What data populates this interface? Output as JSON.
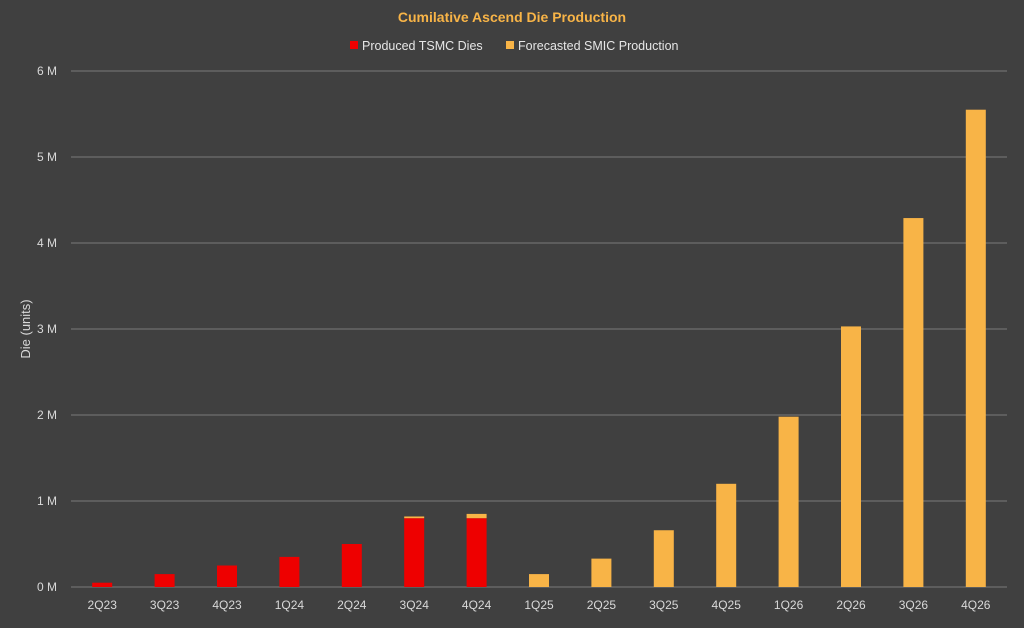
{
  "chart_data": {
    "type": "bar",
    "stacked": true,
    "title": "Cumilative Ascend Die Production",
    "xlabel": "",
    "ylabel": "Die (units)",
    "ylim": [
      0,
      6000000
    ],
    "yticks": [
      0,
      1000000,
      2000000,
      3000000,
      4000000,
      5000000,
      6000000
    ],
    "ytick_labels": [
      "0 M",
      "1 M",
      "2 M",
      "3 M",
      "4 M",
      "5 M",
      "6 M"
    ],
    "categories": [
      "2Q23",
      "3Q23",
      "4Q23",
      "1Q24",
      "2Q24",
      "3Q24",
      "4Q24",
      "1Q25",
      "2Q25",
      "3Q25",
      "4Q25",
      "1Q26",
      "2Q26",
      "3Q26",
      "4Q26"
    ],
    "legend_position": "top-center",
    "grid": true,
    "series": [
      {
        "name": "Produced TSMC Dies",
        "color": "#ee0000",
        "values": [
          50000,
          150000,
          250000,
          350000,
          500000,
          800000,
          800000,
          0,
          0,
          0,
          0,
          0,
          0,
          0,
          0
        ]
      },
      {
        "name": "Forecasted SMIC Production",
        "color": "#f8b447",
        "values": [
          0,
          0,
          0,
          0,
          0,
          20000,
          50000,
          150000,
          330000,
          660000,
          1200000,
          1980000,
          3030000,
          4290000,
          5550000
        ]
      }
    ]
  },
  "colors": {
    "background": "#404040",
    "gridline": "#7a7a7a",
    "title": "#f8b447",
    "text": "#d9d9d9"
  }
}
